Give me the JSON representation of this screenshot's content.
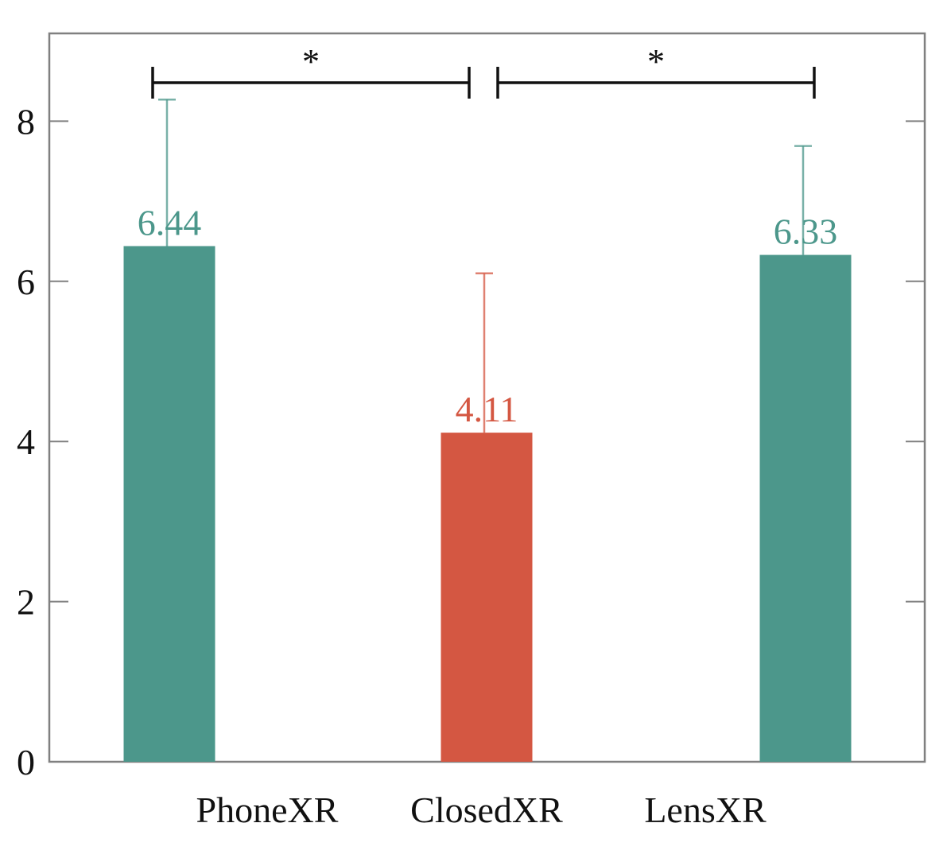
{
  "chart_data": {
    "type": "bar",
    "categories": [
      "PhoneXR",
      "ClosedXR",
      "LensXR"
    ],
    "values": [
      6.44,
      4.11,
      6.33
    ],
    "error_upper": [
      8.27,
      6.1,
      7.69
    ],
    "value_labels": [
      "6.44",
      "4.11",
      "6.33"
    ],
    "bar_colors": [
      "#4c978b",
      "#d45742",
      "#4c978b"
    ],
    "label_colors": [
      "#4c978b",
      "#d45742",
      "#4c978b"
    ],
    "ylim": [
      0,
      9
    ],
    "yticks": [
      0,
      2,
      4,
      6,
      8
    ],
    "ytick_labels": [
      "0",
      "2",
      "4",
      "6",
      "8"
    ],
    "grid": false,
    "significance": [
      {
        "from": 0,
        "to": 1,
        "label": "*"
      },
      {
        "from": 1,
        "to": 2,
        "label": "*"
      }
    ]
  }
}
